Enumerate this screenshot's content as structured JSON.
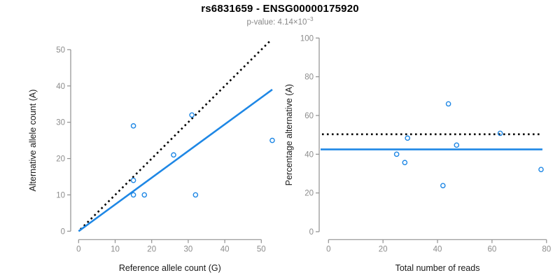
{
  "header": {
    "title": "rs6831659 - ENSG00000175920",
    "subtitle_prefix": "p-value: 4.14×10",
    "subtitle_sup": "−3"
  },
  "colors": {
    "accent": "#1E87E5",
    "dotted_line": "#000000",
    "axis_line": "#909090",
    "tick_label": "#8C8C8C",
    "axis_title": "#1A1A1A"
  },
  "chart_data": [
    {
      "type": "scatter",
      "xlabel": "Reference allele count (G)",
      "ylabel": "Alternative allele count (A)",
      "xlim": [
        0,
        53
      ],
      "ylim": [
        0,
        53
      ],
      "xticks": [
        0,
        10,
        20,
        30,
        40,
        50
      ],
      "yticks": [
        0,
        10,
        20,
        30,
        40,
        50
      ],
      "points": [
        [
          15,
          29
        ],
        [
          31,
          32
        ],
        [
          26,
          21
        ],
        [
          15,
          14
        ],
        [
          15,
          10
        ],
        [
          18,
          10
        ],
        [
          32,
          10
        ],
        [
          53,
          25
        ]
      ],
      "lines": [
        {
          "name": "identity-line",
          "style": "dotted",
          "color": "dotted_line",
          "x1": 0.5,
          "y1": 0.5,
          "x2": 52.3,
          "y2": 52.3
        },
        {
          "name": "fit-line",
          "style": "solid",
          "color": "accent",
          "x1": 0,
          "y1": 0,
          "x2": 53,
          "y2": 39
        }
      ],
      "grid": false,
      "legend": null
    },
    {
      "type": "scatter",
      "xlabel": "Total number of reads",
      "ylabel": "Percentage alternative (A)",
      "xlim": [
        0,
        80
      ],
      "ylim": [
        0,
        100
      ],
      "xticks": [
        0,
        20,
        40,
        60,
        80
      ],
      "yticks": [
        0,
        20,
        40,
        60,
        80,
        100
      ],
      "points": [
        [
          44,
          66
        ],
        [
          63,
          50.8
        ],
        [
          47,
          44.7
        ],
        [
          29,
          48.3
        ],
        [
          25,
          40
        ],
        [
          28,
          35.7
        ],
        [
          42,
          23.8
        ],
        [
          78,
          32.1
        ]
      ],
      "lines": [
        {
          "name": "expected-line",
          "style": "dotted",
          "color": "dotted_line",
          "x1": -2.4,
          "y1": 50.3,
          "x2": 77.7,
          "y2": 50.3
        },
        {
          "name": "mean-line",
          "style": "solid",
          "color": "accent",
          "x1": -2.9,
          "y1": 42.5,
          "x2": 78.5,
          "y2": 42.5
        }
      ],
      "grid": false,
      "legend": null
    }
  ]
}
